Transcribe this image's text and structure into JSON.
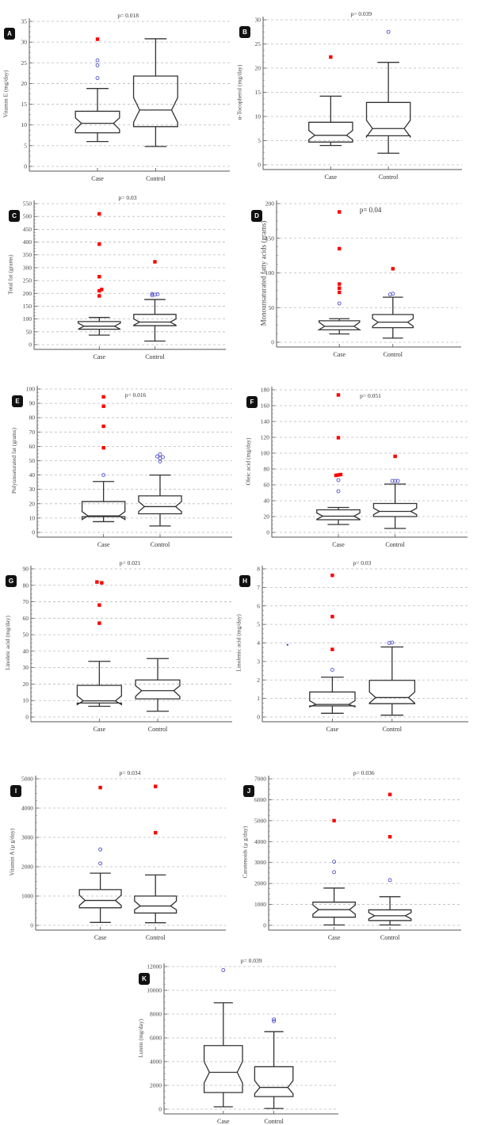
{
  "chart_data": [
    {
      "id": "A",
      "type": "boxplot",
      "title": "",
      "annotation": "p= 0.018",
      "ylabel": "Vitamin E (mg/day)",
      "xlabel": "",
      "categories": [
        "Case",
        "Control"
      ],
      "ylim": [
        0,
        35
      ],
      "yticks": [
        0,
        5,
        10,
        15,
        20,
        25,
        30,
        35
      ],
      "grid": true,
      "series": [
        {
          "name": "Case",
          "whisker_low": 6,
          "q1": 8.1,
          "median": 10.4,
          "q3": 13.3,
          "whisker_high": 18.8,
          "notch_low": 8.9,
          "notch_high": 11.7,
          "outliers_circle": [
            21.3,
            24.4,
            25.6
          ],
          "outliers_far": [
            30.7
          ]
        },
        {
          "name": "Control",
          "whisker_low": 4.8,
          "q1": 9.6,
          "median": 13.6,
          "q3": 21.8,
          "whisker_high": 30.8,
          "notch_low": 10.6,
          "notch_high": 16.6,
          "outliers_circle": [],
          "outliers_far": []
        }
      ]
    },
    {
      "id": "B",
      "type": "boxplot",
      "annotation": "p= 0.039",
      "ylabel": "α-Tocopherol (mg/day)",
      "xlabel": "",
      "categories": [
        "Case",
        "Control"
      ],
      "ylim": [
        0,
        30
      ],
      "yticks": [
        0,
        5,
        10,
        15,
        20,
        25,
        30
      ],
      "grid": true,
      "series": [
        {
          "name": "Case",
          "whisker_low": 4,
          "q1": 4.7,
          "median": 6.1,
          "q3": 8.8,
          "whisker_high": 14.2,
          "notch_low": 5.2,
          "notch_high": 7.1,
          "outliers_circle": [],
          "outliers_far": [
            22.3
          ]
        },
        {
          "name": "Control",
          "whisker_low": 2.4,
          "q1": 6,
          "median": 7.5,
          "q3": 12.9,
          "whisker_high": 21.2,
          "notch_low": 5.8,
          "notch_high": 9.2,
          "outliers_circle": [
            27.5
          ],
          "outliers_far": []
        }
      ]
    },
    {
      "id": "C",
      "type": "boxplot",
      "annotation": "p= 0.03",
      "ylabel": "Total fat (grams)",
      "xlabel": "",
      "categories": [
        "Case",
        "Control"
      ],
      "ylim": [
        0,
        550
      ],
      "yticks": [
        0,
        50,
        100,
        150,
        200,
        250,
        300,
        350,
        400,
        450,
        500,
        550
      ],
      "grid": true,
      "series": [
        {
          "name": "Case",
          "whisker_low": 37,
          "q1": 60,
          "median": 72,
          "q3": 90,
          "whisker_high": 106,
          "notch_low": 60,
          "notch_high": 84,
          "outliers_circle": [],
          "outliers_far": [
            190,
            210,
            215,
            265,
            392,
            510
          ]
        },
        {
          "name": "Control",
          "whisker_low": 14,
          "q1": 74,
          "median": 88,
          "q3": 118,
          "whisker_high": 176,
          "notch_low": 76,
          "notch_high": 100,
          "outliers_circle": [
            192,
            195,
            197,
            198
          ],
          "outliers_far": [
            323
          ]
        }
      ]
    },
    {
      "id": "D",
      "type": "boxplot",
      "annotation": "p= 0.04",
      "ylabel": "Monounsaturated fatty acids (grams)",
      "xlabel": "",
      "categories": [
        "Case",
        "Control"
      ],
      "ylim": [
        0,
        200
      ],
      "yticks": [
        0,
        50,
        100,
        150,
        200
      ],
      "grid": true,
      "series": [
        {
          "name": "Case",
          "whisker_low": 12,
          "q1": 18,
          "median": 23,
          "q3": 31,
          "whisker_high": 34,
          "notch_low": 18,
          "notch_high": 29,
          "outliers_circle": [
            56
          ],
          "outliers_far": [
            72,
            78,
            84,
            135,
            188
          ]
        },
        {
          "name": "Control",
          "whisker_low": 6,
          "q1": 21,
          "median": 29,
          "q3": 40,
          "whisker_high": 65,
          "notch_low": 23,
          "notch_high": 34,
          "outliers_circle": [
            69,
            70
          ],
          "outliers_far": [
            106
          ]
        }
      ]
    },
    {
      "id": "E",
      "type": "boxplot",
      "annotation": "p= 0.016",
      "ylabel": "Polyunsaturated fat (grams)",
      "xlabel": "",
      "categories": [
        "Case",
        "Control"
      ],
      "ylim": [
        0,
        100
      ],
      "yticks": [
        0,
        10,
        20,
        30,
        40,
        50,
        60,
        70,
        80,
        90,
        100
      ],
      "grid": true,
      "series": [
        {
          "name": "Case",
          "whisker_low": 7.5,
          "q1": 11,
          "median": 11.5,
          "q3": 21.5,
          "whisker_high": 35.5,
          "notch_low": 9,
          "notch_high": 14.5,
          "outliers_circle": [
            40
          ],
          "outliers_far": [
            59,
            74,
            88,
            94.5
          ]
        },
        {
          "name": "Control",
          "whisker_low": 4.5,
          "q1": 13,
          "median": 18,
          "q3": 25.5,
          "whisker_high": 40,
          "notch_low": 14.5,
          "notch_high": 21.5,
          "outliers_circle": [
            49.5,
            51.5,
            52.5,
            53,
            54.5
          ],
          "outliers_far": []
        }
      ]
    },
    {
      "id": "F",
      "type": "boxplot",
      "annotation": "p= 0.051",
      "ylabel": "Oleic acid (mg/day)",
      "xlabel": "",
      "categories": [
        "Case",
        "Control"
      ],
      "ylim": [
        0,
        180
      ],
      "yticks": [
        0,
        20,
        40,
        60,
        80,
        100,
        120,
        140,
        160,
        180
      ],
      "grid": true,
      "series": [
        {
          "name": "Case",
          "whisker_low": 10,
          "q1": 16,
          "median": 20.5,
          "q3": 28.5,
          "whisker_high": 31.5,
          "notch_low": 16.5,
          "notch_high": 24.5,
          "outliers_circle": [
            52,
            66
          ],
          "outliers_far": [
            72,
            72.5,
            73,
            119.5,
            173.5
          ]
        },
        {
          "name": "Control",
          "whisker_low": 5,
          "q1": 20,
          "median": 26.5,
          "q3": 36.5,
          "whisker_high": 61,
          "notch_low": 22.5,
          "notch_high": 30.5,
          "outliers_circle": [
            65,
            65,
            65
          ],
          "outliers_far": [
            96
          ]
        }
      ]
    },
    {
      "id": "G",
      "type": "boxplot",
      "annotation": "p= 0.021",
      "ylabel": "Linoleic acid (mg/day)",
      "xlabel": "",
      "categories": [
        "Case",
        "Control"
      ],
      "ylim": [
        0,
        90
      ],
      "yticks": [
        0,
        10,
        20,
        30,
        40,
        50,
        60,
        70,
        80,
        90
      ],
      "grid": true,
      "series": [
        {
          "name": "Case",
          "whisker_low": 6.5,
          "q1": 8.5,
          "median": 9.8,
          "q3": 19.2,
          "whisker_high": 33.8,
          "notch_low": 7.5,
          "notch_high": 12.8,
          "outliers_circle": [],
          "outliers_far": [
            57,
            68,
            81.5,
            82
          ]
        },
        {
          "name": "Control",
          "whisker_low": 3.5,
          "q1": 11,
          "median": 16,
          "q3": 22.5,
          "whisker_high": 35.5,
          "notch_low": 12.5,
          "notch_high": 19
        },
        {
          "name": "_",
          "hidden": true
        }
      ]
    },
    {
      "id": "H",
      "type": "boxplot",
      "annotation": "p= 0.03",
      "ylabel": "Linolenic acid (mg/day)",
      "xlabel": "",
      "categories": [
        "Case",
        "Control"
      ],
      "ylim": [
        0,
        8
      ],
      "yticks": [
        0,
        1,
        2,
        3,
        4,
        5,
        6,
        7,
        8
      ],
      "grid": true,
      "series": [
        {
          "name": "Case",
          "whisker_low": 0.2,
          "q1": 0.6,
          "median": 0.68,
          "q3": 1.35,
          "whisker_high": 2.15,
          "notch_low": 0.55,
          "notch_high": 0.88,
          "outliers_circle": [
            2.55
          ],
          "outliers_far": [
            3.65,
            5.42,
            7.65
          ]
        },
        {
          "name": "Control",
          "whisker_low": 0.1,
          "q1": 0.72,
          "median": 1.05,
          "q3": 1.98,
          "whisker_high": 3.78,
          "notch_low": 0.75,
          "notch_high": 1.35,
          "outliers_circle": [
            4,
            4.02
          ],
          "outliers_far": []
        }
      ],
      "stray_marker": {
        "category_offset": -0.75,
        "value": 3.9
      }
    },
    {
      "id": "I",
      "type": "boxplot",
      "annotation": "p= 0.034",
      "ylabel": "Vitamin A (μ g/day)",
      "xlabel": "",
      "categories": [
        "Case",
        "Control"
      ],
      "ylim": [
        0,
        5000
      ],
      "yticks": [
        0,
        1000,
        2000,
        3000,
        4000,
        5000
      ],
      "grid": true,
      "series": [
        {
          "name": "Case",
          "whisker_low": 100,
          "q1": 600,
          "median": 850,
          "q3": 1220,
          "whisker_high": 1780,
          "notch_low": 680,
          "notch_high": 1030,
          "outliers_circle": [
            2110,
            2590
          ],
          "outliers_far": [
            4700
          ]
        },
        {
          "name": "Control",
          "whisker_low": 90,
          "q1": 420,
          "median": 660,
          "q3": 1000,
          "whisker_high": 1720,
          "notch_low": 530,
          "notch_high": 830,
          "outliers_circle": [],
          "outliers_far": [
            3160,
            4740
          ]
        }
      ]
    },
    {
      "id": "J",
      "type": "boxplot",
      "annotation": "p= 0.036",
      "ylabel": "Carotenoids (μ g/day)",
      "xlabel": "",
      "categories": [
        "Case",
        "Control"
      ],
      "ylim": [
        0,
        7000
      ],
      "yticks": [
        0,
        1000,
        2000,
        3000,
        4000,
        5000,
        6000,
        7000
      ],
      "grid": true,
      "series": [
        {
          "name": "Case",
          "whisker_low": 20,
          "q1": 390,
          "median": 750,
          "q3": 1110,
          "whisker_high": 1780,
          "notch_low": 530,
          "notch_high": 970,
          "outliers_circle": [
            2540,
            3040
          ],
          "outliers_far": [
            5000
          ]
        },
        {
          "name": "Control",
          "whisker_low": 20,
          "q1": 230,
          "median": 460,
          "q3": 740,
          "whisker_high": 1370,
          "notch_low": 310,
          "notch_high": 610,
          "outliers_circle": [
            2160
          ],
          "outliers_far": [
            4230,
            6250
          ]
        }
      ]
    },
    {
      "id": "K",
      "type": "boxplot",
      "annotation": "p= 0.039",
      "ylabel": "Lutein (mg/day)",
      "xlabel": "",
      "categories": [
        "Case",
        "Control"
      ],
      "ylim": [
        0,
        12000
      ],
      "yticks": [
        0,
        2000,
        4000,
        6000,
        8000,
        10000,
        12000
      ],
      "grid": true,
      "series": [
        {
          "name": "Case",
          "whisker_low": 200,
          "q1": 1400,
          "median": 3100,
          "q3": 5350,
          "whisker_high": 8950,
          "notch_low": 2200,
          "notch_high": 4000,
          "outliers_circle": [
            11700
          ],
          "outliers_far": []
        },
        {
          "name": "Control",
          "whisker_low": 60,
          "q1": 1060,
          "median": 1830,
          "q3": 3570,
          "whisker_high": 6520,
          "notch_low": 1300,
          "notch_high": 2400,
          "outliers_circle": [
            7400,
            7550
          ],
          "outliers_far": []
        }
      ]
    }
  ],
  "styles": {
    "box_stroke": "#333333",
    "grid_color": "#bbbbbb",
    "outlier_circle_color": "#3a3ac8",
    "outlier_far_color": "#ff0000",
    "badge_bg": "#111111",
    "badge_fg": "#ffffff"
  }
}
